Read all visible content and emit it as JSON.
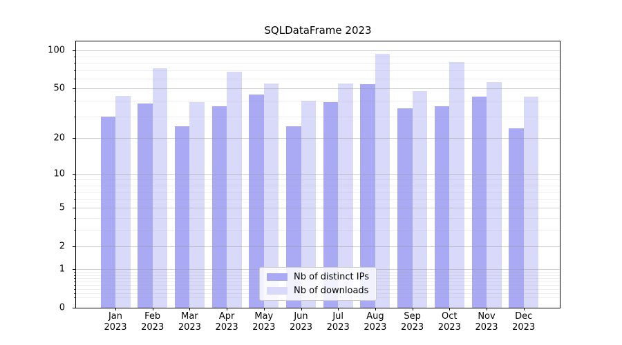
{
  "chart_data": {
    "type": "bar",
    "title": "SQLDataFrame 2023",
    "categories": [
      "Jan",
      "Feb",
      "Mar",
      "Apr",
      "May",
      "Jun",
      "Jul",
      "Aug",
      "Sep",
      "Oct",
      "Nov",
      "Dec"
    ],
    "category_year": "2023",
    "series": [
      {
        "name": "Nb of distinct IPs",
        "color": "#a9a9f4",
        "values": [
          30,
          38,
          25,
          36,
          45,
          25,
          39,
          54,
          35,
          36,
          43,
          24
        ]
      },
      {
        "name": "Nb of downloads",
        "color": "#d9d9f9",
        "values": [
          44,
          72,
          39,
          68,
          55,
          40,
          55,
          94,
          48,
          81,
          56,
          43
        ]
      }
    ],
    "yscale": "log1p",
    "ylim": [
      0,
      118
    ],
    "yticks": [
      100,
      50,
      20,
      10,
      5,
      2,
      1,
      0
    ],
    "yticks_minor": [
      0.2,
      0.3,
      0.4,
      0.5,
      0.6,
      0.7,
      0.8,
      0.9,
      3,
      4,
      6,
      7,
      8,
      9,
      30,
      40,
      60,
      70,
      80,
      90
    ],
    "grid": true,
    "legend_position": "lower center"
  }
}
